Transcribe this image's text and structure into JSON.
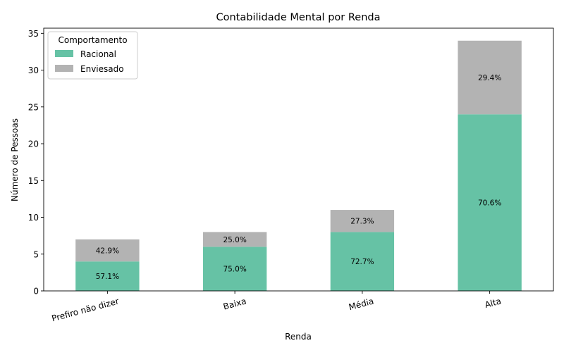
{
  "chart_data": {
    "type": "bar",
    "stacked": true,
    "title": "Contabilidade Mental por Renda",
    "xlabel": "Renda",
    "ylabel": "Número de Pessoas",
    "categories": [
      "Prefiro não dizer",
      "Baixa",
      "Média",
      "Alta"
    ],
    "ylim": [
      0,
      35.7
    ],
    "yticks": [
      0,
      5,
      10,
      15,
      20,
      25,
      30,
      35
    ],
    "grid": false,
    "legend": {
      "title": "Comportamento",
      "placement": "top-left"
    },
    "series": [
      {
        "name": "Racional",
        "color": "#66c2a5",
        "values": [
          4,
          6,
          8,
          24
        ],
        "labels": [
          "57.1%",
          "75.0%",
          "72.7%",
          "70.6%"
        ]
      },
      {
        "name": "Enviesado",
        "color": "#b3b3b3",
        "values": [
          3,
          2,
          3,
          10
        ],
        "labels": [
          "42.9%",
          "25.0%",
          "27.3%",
          "29.4%"
        ]
      }
    ]
  }
}
